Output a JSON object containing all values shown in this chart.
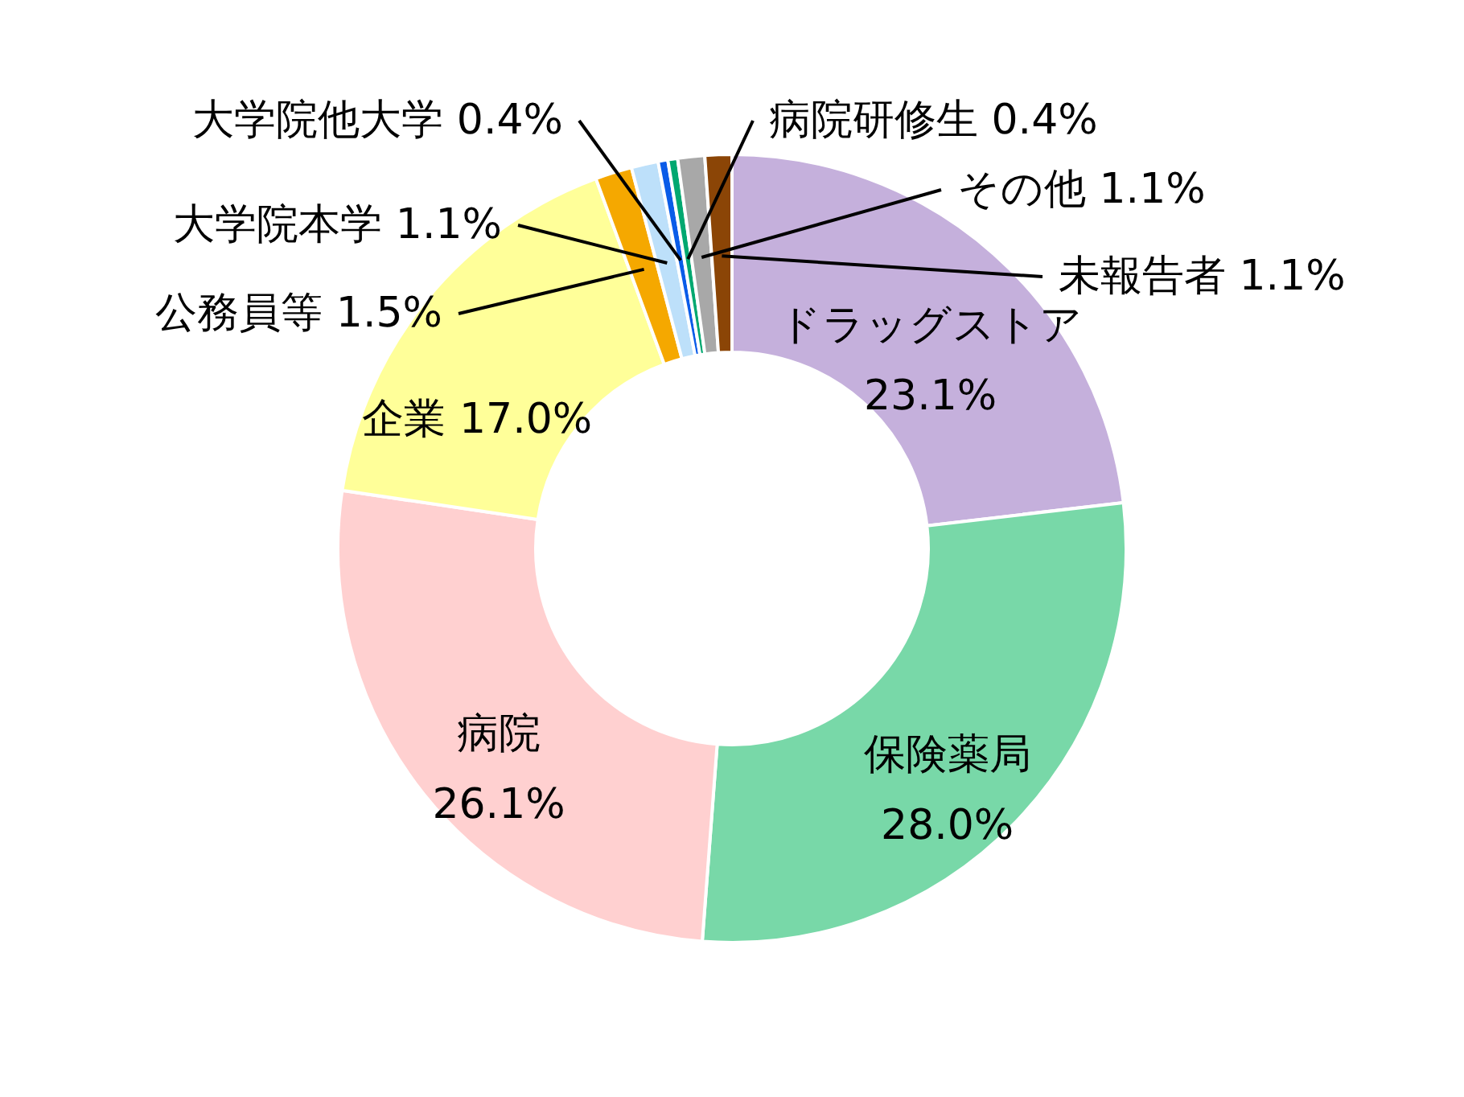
{
  "chart_data": {
    "type": "donut",
    "categories": [
      "ドラッグストア",
      "保険薬局",
      "病院",
      "企業",
      "公務員等",
      "大学院本学",
      "大学院他大学",
      "病院研修生",
      "その他",
      "未報告者"
    ],
    "values": [
      23.1,
      28.0,
      26.1,
      17.0,
      1.5,
      1.1,
      0.4,
      0.4,
      1.1,
      1.1
    ],
    "value_labels": [
      "23.1%",
      "28.0%",
      "26.1%",
      "17.0%",
      "1.5%",
      "1.1%",
      "0.4%",
      "0.4%",
      "1.1%",
      "1.1%"
    ],
    "colors": [
      "#c5b0dc",
      "#78d8a8",
      "#ffd0d0",
      "#ffff99",
      "#f5a800",
      "#bde0fa",
      "#0a5ce8",
      "#00a870",
      "#a8a8a8",
      "#8b4506"
    ]
  }
}
